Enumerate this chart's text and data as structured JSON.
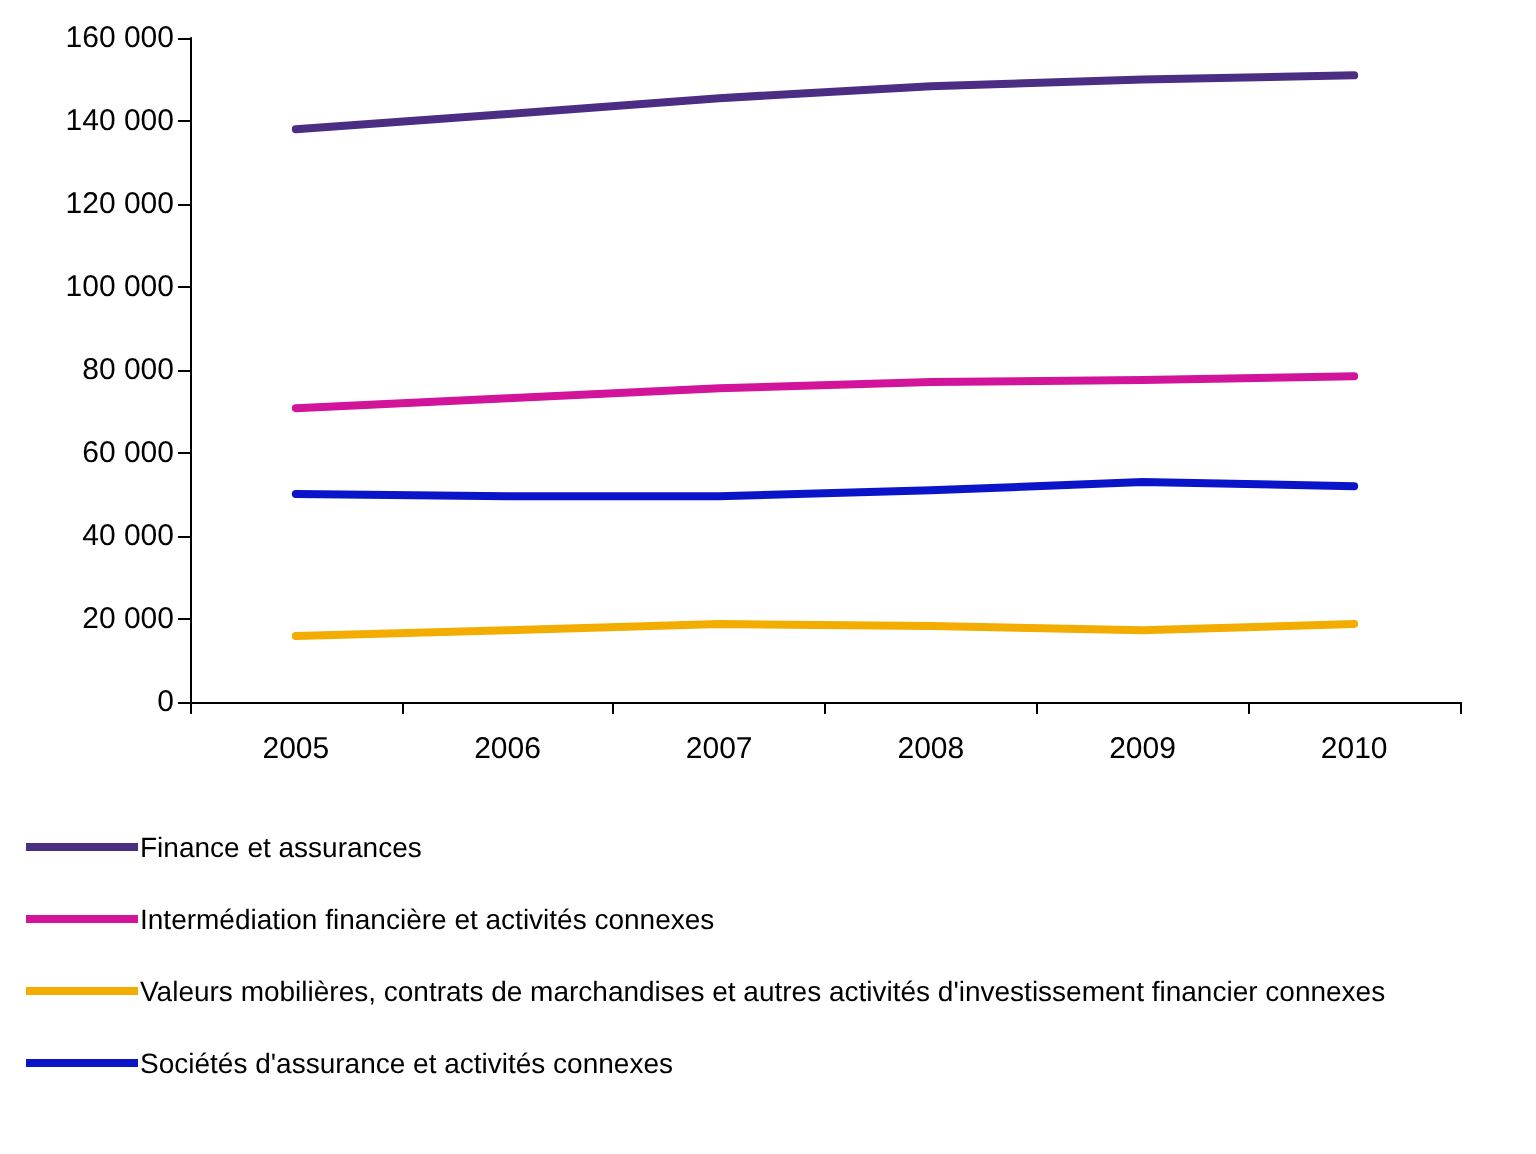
{
  "chart_data": {
    "type": "line",
    "categories": [
      "2005",
      "2006",
      "2007",
      "2008",
      "2009",
      "2010"
    ],
    "series": [
      {
        "name": "Finance et assurances",
        "color": "#4b2d83",
        "values": [
          138000,
          141700,
          145500,
          148400,
          150000,
          151000
        ]
      },
      {
        "name": "Intermédiation financière et activités connexes",
        "color": "#d2149b",
        "values": [
          70800,
          73200,
          75600,
          77100,
          77600,
          78500
        ]
      },
      {
        "name": "Valeurs mobilières, contrats de marchandises et autres activités d'investissement financier connexes",
        "color": "#f2ad00",
        "values": [
          15900,
          17300,
          18800,
          18300,
          17300,
          18800
        ]
      },
      {
        "name": "Sociétés d'assurance et activités connexes",
        "color": "#0a14c8",
        "values": [
          50100,
          49600,
          49600,
          51000,
          53000,
          52000
        ]
      }
    ],
    "ylim": [
      0,
      160000
    ],
    "yticks": [
      0,
      20000,
      40000,
      60000,
      80000,
      100000,
      120000,
      140000,
      160000
    ],
    "grid": false,
    "legend": "bottom left",
    "marker": "none",
    "line_style": "solid"
  }
}
